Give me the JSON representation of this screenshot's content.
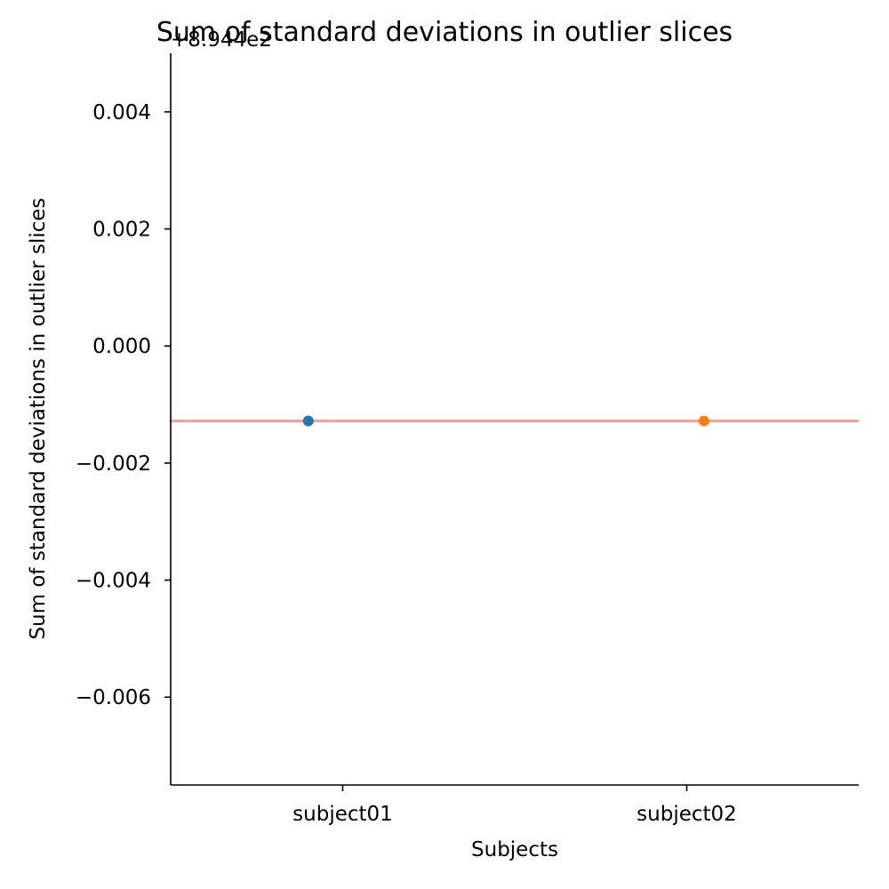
{
  "chart_data": {
    "type": "scatter",
    "title": "Sum of standard deviations in outlier slices",
    "xlabel": "Subjects",
    "ylabel": "Sum of standard deviations in outlier slices",
    "offset_text": "+8.944e2",
    "categories": [
      "subject01",
      "subject02"
    ],
    "points": [
      {
        "category": "subject01",
        "x": -0.1,
        "y": -0.00128,
        "color": "#1f77b4"
      },
      {
        "category": "subject02",
        "x": 1.05,
        "y": -0.00128,
        "color": "#ff7f0e"
      }
    ],
    "reference_line": {
      "y": -0.00128,
      "color": "#f4a09c"
    },
    "xlim": [
      -0.5,
      1.5
    ],
    "ylim": [
      -0.0075,
      0.005
    ],
    "yticks": [
      {
        "value": 0.004,
        "label": "0.004"
      },
      {
        "value": 0.002,
        "label": "0.002"
      },
      {
        "value": 0.0,
        "label": "0.000"
      },
      {
        "value": -0.002,
        "label": "−0.002"
      },
      {
        "value": -0.004,
        "label": "−0.004"
      },
      {
        "value": -0.006,
        "label": "−0.006"
      }
    ],
    "grid": false,
    "spines": "left-bottom"
  }
}
